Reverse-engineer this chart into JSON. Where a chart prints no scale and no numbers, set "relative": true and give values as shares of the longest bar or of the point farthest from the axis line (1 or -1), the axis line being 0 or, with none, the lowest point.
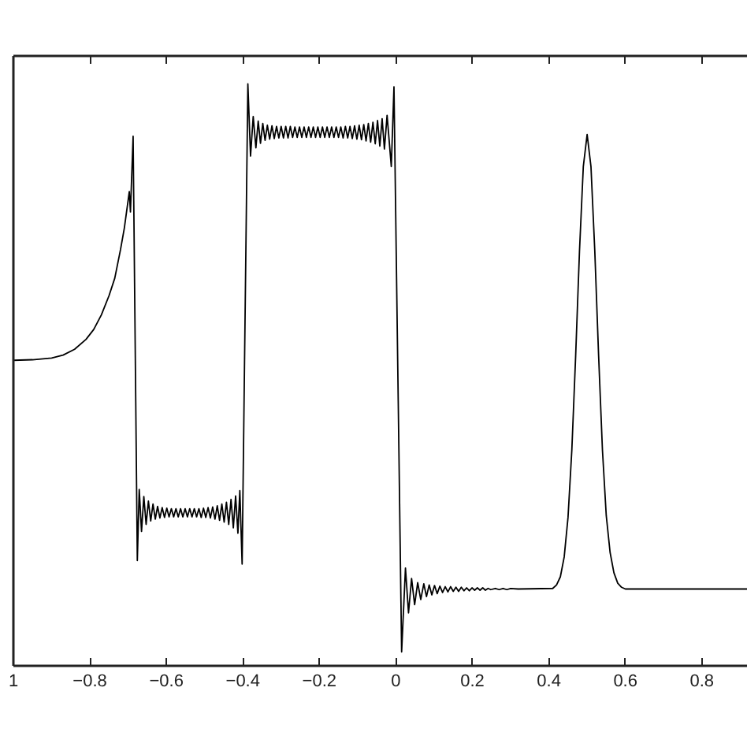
{
  "chart_data": {
    "type": "line",
    "relative": true,
    "xlim": [
      -1,
      0.92
    ],
    "xticks": [
      {
        "value": -1,
        "label": "1"
      },
      -0.8,
      -0.6,
      -0.4,
      -0.2,
      0,
      0.2,
      0.4,
      0.6,
      0.8
    ],
    "x": [
      -1.0,
      -0.95,
      -0.9,
      -0.87,
      -0.84,
      -0.81,
      -0.79,
      -0.77,
      -0.75,
      -0.735,
      -0.72,
      -0.71,
      -0.7,
      -0.697,
      -0.694,
      -0.687,
      -0.676,
      -0.671,
      -0.665,
      -0.659,
      -0.653,
      -0.647,
      -0.641,
      -0.635,
      -0.629,
      -0.623,
      -0.617,
      -0.611,
      -0.605,
      -0.599,
      -0.593,
      -0.587,
      -0.581,
      -0.575,
      -0.569,
      -0.563,
      -0.557,
      -0.551,
      -0.545,
      -0.539,
      -0.533,
      -0.527,
      -0.521,
      -0.515,
      -0.509,
      -0.503,
      -0.497,
      -0.491,
      -0.485,
      -0.479,
      -0.473,
      -0.467,
      -0.461,
      -0.455,
      -0.449,
      -0.443,
      -0.437,
      -0.431,
      -0.425,
      -0.419,
      -0.413,
      -0.408,
      -0.402,
      -0.387,
      -0.38,
      -0.373,
      -0.366,
      -0.36,
      -0.354,
      -0.348,
      -0.342,
      -0.336,
      -0.33,
      -0.324,
      -0.318,
      -0.312,
      -0.306,
      -0.3,
      -0.294,
      -0.288,
      -0.282,
      -0.276,
      -0.27,
      -0.264,
      -0.258,
      -0.252,
      -0.246,
      -0.24,
      -0.234,
      -0.228,
      -0.222,
      -0.216,
      -0.21,
      -0.204,
      -0.198,
      -0.192,
      -0.186,
      -0.18,
      -0.174,
      -0.168,
      -0.162,
      -0.156,
      -0.15,
      -0.144,
      -0.138,
      -0.132,
      -0.126,
      -0.12,
      -0.114,
      -0.108,
      -0.102,
      -0.096,
      -0.09,
      -0.084,
      -0.078,
      -0.072,
      -0.066,
      -0.06,
      -0.054,
      -0.048,
      -0.042,
      -0.036,
      -0.03,
      -0.023,
      -0.012,
      -0.005,
      0.015,
      0.025,
      0.033,
      0.041,
      0.049,
      0.057,
      0.065,
      0.073,
      0.08,
      0.087,
      0.094,
      0.101,
      0.108,
      0.115,
      0.122,
      0.129,
      0.136,
      0.143,
      0.15,
      0.157,
      0.164,
      0.171,
      0.178,
      0.185,
      0.192,
      0.199,
      0.206,
      0.213,
      0.22,
      0.227,
      0.234,
      0.241,
      0.248,
      0.26,
      0.27,
      0.28,
      0.29,
      0.3,
      0.32,
      0.41,
      0.42,
      0.43,
      0.44,
      0.45,
      0.46,
      0.47,
      0.48,
      0.49,
      0.5,
      0.51,
      0.52,
      0.53,
      0.54,
      0.55,
      0.56,
      0.57,
      0.58,
      0.59,
      0.6,
      0.92
    ],
    "series": [
      {
        "color": "#000000",
        "values": [
          0.525,
          0.526,
          0.529,
          0.534,
          0.544,
          0.561,
          0.578,
          0.603,
          0.636,
          0.666,
          0.715,
          0.752,
          0.8,
          0.815,
          0.78,
          0.91,
          0.181,
          0.303,
          0.231,
          0.291,
          0.243,
          0.283,
          0.249,
          0.278,
          0.252,
          0.274,
          0.254,
          0.272,
          0.255,
          0.271,
          0.256,
          0.27,
          0.256,
          0.27,
          0.256,
          0.27,
          0.256,
          0.27,
          0.256,
          0.27,
          0.256,
          0.27,
          0.256,
          0.27,
          0.255,
          0.271,
          0.255,
          0.272,
          0.254,
          0.273,
          0.252,
          0.275,
          0.25,
          0.278,
          0.247,
          0.281,
          0.243,
          0.286,
          0.237,
          0.292,
          0.228,
          0.301,
          0.175,
          1,
          0.876,
          0.944,
          0.89,
          0.936,
          0.898,
          0.932,
          0.903,
          0.929,
          0.905,
          0.928,
          0.906,
          0.927,
          0.907,
          0.927,
          0.907,
          0.927,
          0.907,
          0.927,
          0.908,
          0.926,
          0.908,
          0.926,
          0.908,
          0.926,
          0.908,
          0.926,
          0.908,
          0.926,
          0.908,
          0.926,
          0.908,
          0.926,
          0.908,
          0.926,
          0.908,
          0.926,
          0.908,
          0.926,
          0.908,
          0.926,
          0.907,
          0.927,
          0.907,
          0.927,
          0.906,
          0.928,
          0.905,
          0.929,
          0.904,
          0.93,
          0.902,
          0.932,
          0.9,
          0.934,
          0.897,
          0.937,
          0.893,
          0.94,
          0.888,
          0.946,
          0.858,
          0.995,
          0.024,
          0.168,
          0.091,
          0.15,
          0.105,
          0.143,
          0.114,
          0.141,
          0.119,
          0.139,
          0.122,
          0.138,
          0.124,
          0.137,
          0.126,
          0.136,
          0.127,
          0.136,
          0.128,
          0.135,
          0.128,
          0.135,
          0.129,
          0.134,
          0.129,
          0.134,
          0.13,
          0.134,
          0.13,
          0.134,
          0.13,
          0.133,
          0.131,
          0.133,
          0.131,
          0.133,
          0.131,
          0.133,
          0.132,
          0.133,
          0.139,
          0.153,
          0.187,
          0.255,
          0.371,
          0.533,
          0.713,
          0.858,
          0.913,
          0.858,
          0.713,
          0.533,
          0.371,
          0.258,
          0.195,
          0.16,
          0.142,
          0.135,
          0.132,
          0.132
        ]
      }
    ]
  }
}
